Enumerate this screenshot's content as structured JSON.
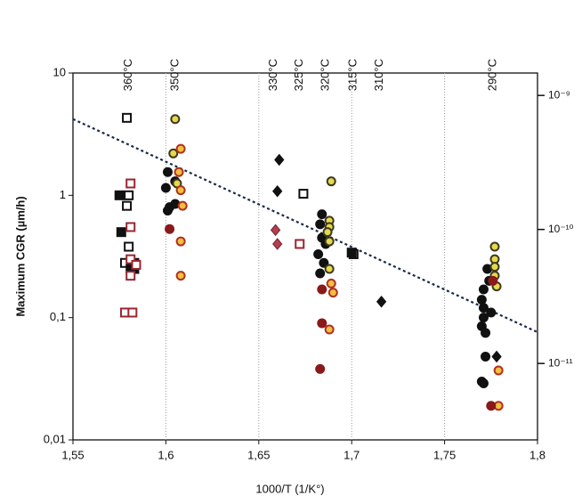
{
  "chart_data": {
    "type": "scatter",
    "xlabel": "1000/T (1/K°)",
    "ylabel": "Maximum CGR (µm/h)",
    "xlim": [
      1.55,
      1.8
    ],
    "xticks": [
      {
        "value": 1.55,
        "label": "1,55"
      },
      {
        "value": 1.6,
        "label": "1,6"
      },
      {
        "value": 1.65,
        "label": "1,65"
      },
      {
        "value": 1.7,
        "label": "1,7"
      },
      {
        "value": 1.75,
        "label": "1,75"
      },
      {
        "value": 1.8,
        "label": "1,8"
      }
    ],
    "ylim": [
      0.01,
      10
    ],
    "yticks": [
      {
        "value": 0.01,
        "label": "0,01"
      },
      {
        "value": 0.1,
        "label": "0,1"
      },
      1,
      10
    ],
    "ylog": true,
    "y2lim": [
      2.69e-12,
      1.47e-09
    ],
    "y2ticks": [
      {
        "value": 1e-11,
        "label": "10⁻¹¹"
      },
      {
        "value": 1e-10,
        "label": "10⁻¹⁰"
      },
      {
        "value": 1e-09,
        "label": "10⁻⁹"
      }
    ],
    "y2log": true,
    "top_ticks": [
      {
        "value": 1.58,
        "label": "360°C"
      },
      {
        "value": 1.605,
        "label": "350°C"
      },
      {
        "value": 1.658,
        "label": "330°C"
      },
      {
        "value": 1.672,
        "label": "325°C"
      },
      {
        "value": 1.686,
        "label": "320°C"
      },
      {
        "value": 1.701,
        "label": "315°C"
      },
      {
        "value": 1.715,
        "label": "310°C"
      },
      {
        "value": 1.776,
        "label": "290°C"
      }
    ],
    "grid": "x",
    "series": [
      {
        "marker": "line",
        "stroke": "#1a2a4a",
        "x": [
          1.55,
          1.8
        ],
        "values": [
          4.2,
          0.076
        ]
      },
      {
        "marker": "square",
        "fill": "#ffffff",
        "stroke": "#111111",
        "x": [
          1.579,
          1.58,
          1.579,
          1.58,
          1.578,
          1.674,
          1.701
        ],
        "values": [
          4.3,
          1.0,
          0.82,
          0.38,
          0.28,
          1.03,
          0.33
        ]
      },
      {
        "marker": "square",
        "fill": "#111111",
        "stroke": "#111111",
        "x": [
          1.575,
          1.576,
          1.581,
          1.583,
          1.583,
          1.7
        ],
        "values": [
          1.0,
          0.5,
          0.25,
          0.28,
          0.25,
          0.34
        ]
      },
      {
        "marker": "square",
        "fill": "#ffffff",
        "stroke": "#9a2530",
        "x": [
          1.581,
          1.581,
          1.581,
          1.581,
          1.578,
          1.582,
          1.584,
          1.672
        ],
        "values": [
          1.25,
          0.55,
          0.3,
          0.22,
          0.11,
          0.11,
          0.27,
          0.4
        ]
      },
      {
        "marker": "circle",
        "fill": "#111111",
        "stroke": "#111111",
        "x": [
          1.601,
          1.6,
          1.602,
          1.601,
          1.605,
          1.605,
          1.684,
          1.683,
          1.684,
          1.686,
          1.682,
          1.683,
          1.685,
          1.773,
          1.771,
          1.77,
          1.771,
          1.771,
          1.77,
          1.772,
          1.772,
          1.77,
          1.771,
          1.775,
          1.774
        ],
        "values": [
          1.55,
          1.15,
          0.8,
          0.75,
          0.85,
          1.3,
          0.7,
          0.58,
          0.45,
          0.4,
          0.33,
          0.23,
          0.28,
          0.25,
          0.17,
          0.14,
          0.12,
          0.1,
          0.085,
          0.075,
          0.048,
          0.03,
          0.029,
          0.11,
          0.2
        ]
      },
      {
        "marker": "circle",
        "fill": "#e8d84a",
        "stroke": "#3a3a22",
        "x": [
          1.605,
          1.604,
          1.606,
          1.689,
          1.688,
          1.688,
          1.687,
          1.688,
          1.688,
          1.777,
          1.777,
          1.777,
          1.777,
          1.778
        ],
        "values": [
          4.2,
          2.2,
          1.25,
          1.3,
          0.62,
          0.55,
          0.5,
          0.42,
          0.25,
          0.38,
          0.3,
          0.26,
          0.22,
          0.18
        ]
      },
      {
        "marker": "circle",
        "fill": "#f0c040",
        "stroke": "#b03020",
        "x": [
          1.608,
          1.607,
          1.608,
          1.609,
          1.608,
          1.608,
          1.689,
          1.69,
          1.688,
          1.779,
          1.779
        ],
        "values": [
          2.4,
          1.55,
          1.1,
          0.82,
          0.42,
          0.22,
          0.19,
          0.16,
          0.08,
          0.037,
          0.019
        ]
      },
      {
        "marker": "circle",
        "fill": "#8a1a1a",
        "stroke": "#8a1a1a",
        "x": [
          1.602,
          1.684,
          1.684,
          1.683,
          1.775,
          1.776
        ],
        "values": [
          0.53,
          0.17,
          0.09,
          0.038,
          0.019,
          0.2
        ]
      },
      {
        "marker": "diamond",
        "fill": "#111111",
        "stroke": "#111111",
        "x": [
          1.661,
          1.66,
          1.716,
          1.778
        ],
        "values": [
          1.95,
          1.08,
          0.135,
          0.048
        ]
      },
      {
        "marker": "diamond",
        "fill": "#b04050",
        "stroke": "#7a2030",
        "x": [
          1.659,
          1.66
        ],
        "values": [
          0.52,
          0.4
        ]
      }
    ]
  }
}
